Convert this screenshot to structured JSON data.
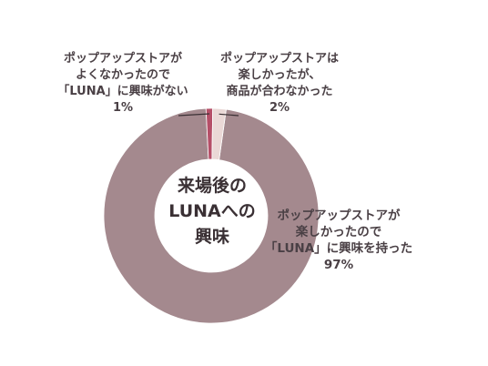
{
  "chart_data": {
    "type": "pie",
    "variant": "donut",
    "center_label": [
      "来場後の",
      "LUNAへの",
      "興味"
    ],
    "slices": [
      {
        "label_lines": [
          "ポップアップストアが",
          "楽しかったので",
          "「LUNA」に興味を持った"
        ],
        "value_label": "97%",
        "value": 97,
        "color": "#a4898e"
      },
      {
        "label_lines": [
          "ポップアップストアが",
          "よくなかったので",
          "「LUNA」に興味がない"
        ],
        "value_label": "1%",
        "value": 1,
        "color": "#b54f68"
      },
      {
        "label_lines": [
          "ポップアップストアは",
          "楽しかったが、",
          "商品が合わなかった"
        ],
        "value_label": "2%",
        "value": 2,
        "color": "#ead8d6"
      }
    ],
    "legend": "none"
  }
}
